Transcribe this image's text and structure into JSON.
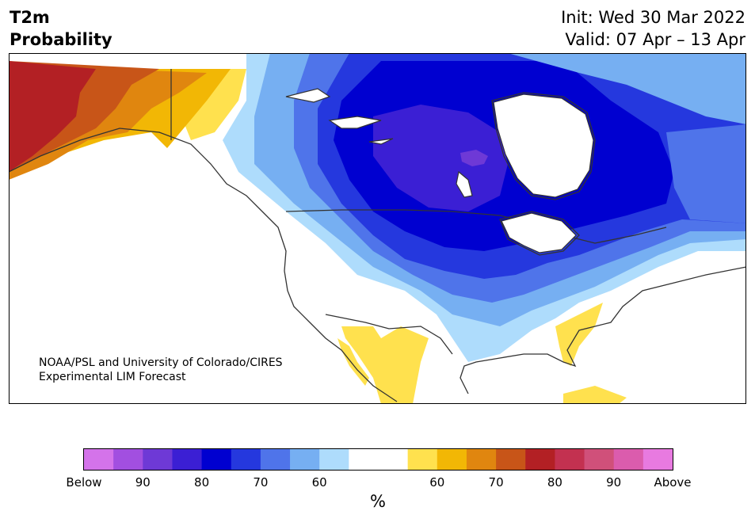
{
  "title": {
    "line1": "T2m",
    "line2": "Probability"
  },
  "dates": {
    "init": "Init: Wed 30 Mar 2022",
    "valid": "Valid: 07 Apr – 13 Apr"
  },
  "credit": {
    "line1": "NOAA/PSL and University of Colorado/CIRES",
    "line2": "Experimental LIM Forecast"
  },
  "colorbar": {
    "colors": [
      "#d473ea",
      "#a24fe0",
      "#6e39d6",
      "#3b1fd4",
      "#0000d0",
      "#2538de",
      "#4f74ea",
      "#76aff2",
      "#aedcfc",
      "#ffffff",
      "#ffffff",
      "#ffe14e",
      "#f2b705",
      "#e0860f",
      "#c85518",
      "#b32024",
      "#c33150",
      "#d0507a",
      "#db5cad",
      "#e87ae0"
    ],
    "ticks": [
      "Below",
      "90",
      "80",
      "70",
      "60",
      "",
      "60",
      "70",
      "80",
      "90",
      "Above"
    ],
    "unit": "%"
  },
  "map_legend_semantics": {
    "below": "cold colors (probability of below-normal T2m)",
    "above": "warm colors (probability of above-normal T2m)"
  }
}
